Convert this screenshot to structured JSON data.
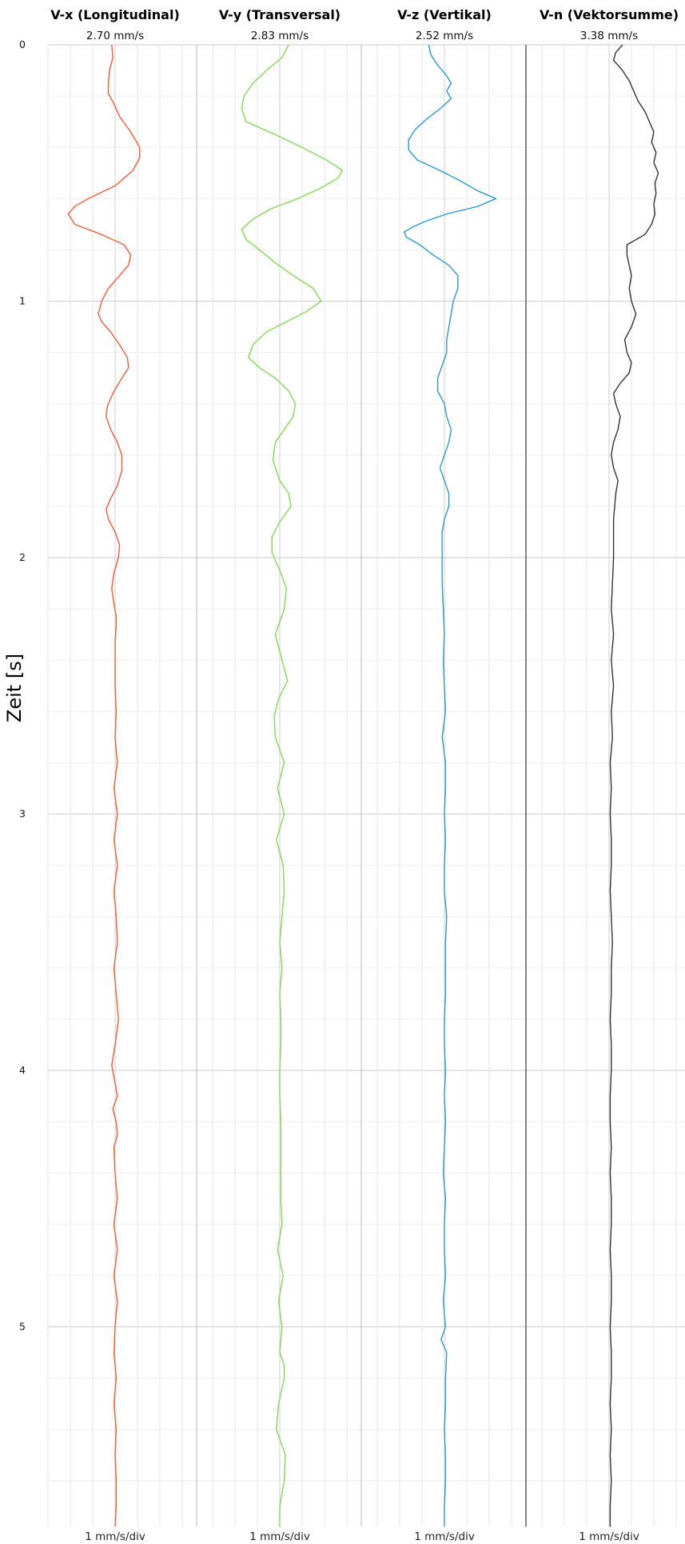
{
  "chart_data": {
    "type": "line",
    "ylabel": "Zeit [s]",
    "ylim": [
      0,
      5.78
    ],
    "yticks": [
      0,
      1,
      2,
      3,
      4,
      5
    ],
    "grid": true,
    "panels": [
      {
        "title": "V-x (Longitudinal)",
        "peak": "2.70 mm/s",
        "scale": "1 mm/s/div",
        "color": "#fa5c3a",
        "t": [
          0,
          0.05,
          0.1,
          0.15,
          0.19,
          0.23,
          0.28,
          0.34,
          0.4,
          0.44,
          0.49,
          0.55,
          0.6,
          0.63,
          0.66,
          0.7,
          0.74,
          0.78,
          0.82,
          0.86,
          0.9,
          0.95,
          1.0,
          1.05,
          1.08,
          1.12,
          1.17,
          1.22,
          1.26,
          1.3,
          1.36,
          1.41,
          1.45,
          1.5,
          1.55,
          1.6,
          1.66,
          1.72,
          1.77,
          1.81,
          1.85,
          1.9,
          1.95,
          2.0,
          2.06,
          2.12,
          2.18,
          2.23,
          2.27,
          2.32,
          2.36,
          2.5,
          2.6,
          2.7,
          2.8,
          2.9,
          3.0,
          3.1,
          3.2,
          3.3,
          3.4,
          3.5,
          3.6,
          3.7,
          3.8,
          3.9,
          3.98,
          4.05,
          4.1,
          4.15,
          4.2,
          4.25,
          4.3,
          4.4,
          4.5,
          4.6,
          4.7,
          4.8,
          4.9,
          5.0,
          5.1,
          5.2,
          5.3,
          5.4,
          5.5,
          5.6,
          5.7,
          5.78
        ],
        "v": [
          -0.15,
          -0.1,
          -0.25,
          -0.3,
          -0.3,
          -0.05,
          0.2,
          0.7,
          1.1,
          1.1,
          0.8,
          0.0,
          -1.2,
          -1.8,
          -2.1,
          -1.8,
          -0.6,
          0.4,
          0.7,
          0.6,
          0.2,
          -0.3,
          -0.6,
          -0.75,
          -0.6,
          -0.2,
          0.2,
          0.55,
          0.6,
          0.3,
          -0.1,
          -0.35,
          -0.4,
          -0.2,
          0.1,
          0.3,
          0.3,
          0.1,
          -0.2,
          -0.4,
          -0.3,
          0.0,
          0.2,
          0.15,
          -0.05,
          -0.15,
          -0.05,
          0.05,
          0.05,
          0.0,
          0.0,
          0.0,
          0.05,
          0.0,
          0.1,
          -0.05,
          0.1,
          -0.05,
          0.1,
          -0.05,
          0.05,
          0.1,
          -0.05,
          0.05,
          0.15,
          0.0,
          -0.15,
          0.0,
          0.1,
          -0.1,
          0.05,
          0.1,
          -0.05,
          0.0,
          0.1,
          -0.05,
          0.1,
          -0.05,
          0.1,
          0.0,
          -0.05,
          0.05,
          -0.05,
          0.05,
          0.0,
          0.05,
          0.05,
          0.0
        ]
      },
      {
        "title": "V-y (Transversal)",
        "peak": "2.83 mm/s",
        "scale": "1 mm/s/div",
        "color": "#87d55a",
        "t": [
          0,
          0.05,
          0.1,
          0.15,
          0.2,
          0.25,
          0.3,
          0.35,
          0.4,
          0.45,
          0.49,
          0.52,
          0.56,
          0.6,
          0.64,
          0.68,
          0.72,
          0.76,
          0.8,
          0.85,
          0.9,
          0.95,
          1.0,
          1.04,
          1.08,
          1.12,
          1.17,
          1.22,
          1.26,
          1.3,
          1.35,
          1.4,
          1.45,
          1.5,
          1.55,
          1.62,
          1.7,
          1.75,
          1.8,
          1.86,
          1.92,
          1.98,
          2.05,
          2.12,
          2.2,
          2.3,
          2.4,
          2.48,
          2.55,
          2.62,
          2.7,
          2.8,
          2.9,
          3.0,
          3.1,
          3.2,
          3.3,
          3.4,
          3.5,
          3.6,
          3.7,
          3.8,
          3.9,
          4.0,
          4.1,
          4.2,
          4.3,
          4.4,
          4.5,
          4.6,
          4.7,
          4.8,
          4.9,
          5.0,
          5.1,
          5.15,
          5.2,
          5.3,
          5.4,
          5.5,
          5.6,
          5.7,
          5.78
        ],
        "v": [
          0.4,
          0.1,
          -0.6,
          -1.2,
          -1.6,
          -1.7,
          -1.5,
          -0.2,
          1.0,
          2.1,
          2.8,
          2.6,
          1.8,
          0.8,
          -0.4,
          -1.2,
          -1.7,
          -1.5,
          -0.9,
          -0.2,
          0.6,
          1.5,
          1.85,
          1.2,
          0.3,
          -0.6,
          -1.2,
          -1.4,
          -0.9,
          -0.2,
          0.4,
          0.7,
          0.6,
          0.2,
          -0.2,
          -0.3,
          0.0,
          0.4,
          0.5,
          0.0,
          -0.35,
          -0.35,
          0.0,
          0.3,
          0.2,
          -0.2,
          0.1,
          0.35,
          -0.05,
          -0.25,
          -0.2,
          0.2,
          -0.1,
          0.2,
          -0.15,
          0.15,
          0.2,
          0.1,
          0.0,
          0.1,
          0.0,
          0.05,
          0.05,
          0.0,
          0.0,
          0.05,
          0.05,
          0.05,
          0.05,
          0.1,
          -0.1,
          0.15,
          -0.05,
          0.1,
          0.0,
          0.2,
          0.2,
          -0.05,
          -0.15,
          0.25,
          0.2,
          0.0,
          0.0
        ]
      },
      {
        "title": "V-z (Vertikal)",
        "peak": "2.52 mm/s",
        "scale": "1 mm/s/div",
        "color": "#2a9ad1",
        "t": [
          0,
          0.04,
          0.08,
          0.12,
          0.15,
          0.18,
          0.21,
          0.25,
          0.29,
          0.33,
          0.37,
          0.41,
          0.45,
          0.49,
          0.53,
          0.57,
          0.6,
          0.63,
          0.66,
          0.69,
          0.71,
          0.73,
          0.75,
          0.78,
          0.82,
          0.86,
          0.9,
          0.95,
          1.0,
          1.05,
          1.1,
          1.15,
          1.2,
          1.25,
          1.3,
          1.35,
          1.4,
          1.45,
          1.5,
          1.55,
          1.6,
          1.65,
          1.7,
          1.75,
          1.8,
          1.85,
          1.9,
          2.0,
          2.1,
          2.2,
          2.3,
          2.4,
          2.5,
          2.6,
          2.7,
          2.8,
          2.9,
          3.0,
          3.1,
          3.2,
          3.3,
          3.4,
          3.5,
          3.6,
          3.7,
          3.8,
          3.9,
          4.0,
          4.1,
          4.2,
          4.3,
          4.4,
          4.5,
          4.6,
          4.7,
          4.8,
          4.9,
          5.0,
          5.05,
          5.1,
          5.2,
          5.3,
          5.4,
          5.5,
          5.6,
          5.7,
          5.78
        ],
        "v": [
          -0.7,
          -0.6,
          -0.3,
          0.1,
          0.3,
          0.1,
          0.3,
          -0.2,
          -0.8,
          -1.3,
          -1.6,
          -1.6,
          -1.2,
          -0.2,
          0.7,
          1.5,
          2.3,
          1.5,
          0.1,
          -0.9,
          -1.4,
          -1.8,
          -1.7,
          -1.1,
          -0.5,
          0.2,
          0.6,
          0.6,
          0.4,
          0.3,
          0.2,
          0.1,
          0.1,
          -0.1,
          -0.3,
          -0.3,
          0.0,
          0.1,
          0.3,
          0.2,
          0.0,
          -0.2,
          0.0,
          0.2,
          0.2,
          0.0,
          -0.1,
          -0.1,
          -0.1,
          -0.05,
          0.0,
          -0.05,
          0.0,
          0.05,
          -0.1,
          0.05,
          0.05,
          0.0,
          0.05,
          0.0,
          0.0,
          0.1,
          0.05,
          0.05,
          0.05,
          0.0,
          0.0,
          0.05,
          0.0,
          0.05,
          0.0,
          -0.05,
          0.05,
          0.0,
          0.0,
          0.05,
          -0.05,
          0.05,
          -0.15,
          0.1,
          0.05,
          0.05,
          0.0,
          0.05,
          0.05,
          0.0,
          0.0
        ]
      },
      {
        "title": "V-n (Vektorsumme)",
        "peak": "3.38 mm/s",
        "scale": "1 mm/s/div",
        "color": "#333333",
        "t": [
          0,
          0.03,
          0.06,
          0.1,
          0.14,
          0.18,
          0.22,
          0.26,
          0.3,
          0.34,
          0.38,
          0.42,
          0.46,
          0.5,
          0.54,
          0.58,
          0.62,
          0.66,
          0.7,
          0.74,
          0.78,
          0.82,
          0.86,
          0.9,
          0.95,
          1.0,
          1.05,
          1.1,
          1.15,
          1.2,
          1.24,
          1.28,
          1.32,
          1.36,
          1.4,
          1.45,
          1.5,
          1.55,
          1.6,
          1.65,
          1.7,
          1.75,
          1.8,
          1.85,
          1.9,
          2.0,
          2.1,
          2.2,
          2.3,
          2.4,
          2.5,
          2.6,
          2.7,
          2.8,
          2.9,
          3.0,
          3.1,
          3.2,
          3.3,
          3.4,
          3.5,
          3.6,
          3.7,
          3.8,
          3.9,
          4.0,
          4.1,
          4.2,
          4.3,
          4.4,
          4.5,
          4.6,
          4.7,
          4.8,
          4.9,
          5.0,
          5.1,
          5.2,
          5.3,
          5.4,
          5.5,
          5.6,
          5.7,
          5.78
        ],
        "v": [
          0.6,
          0.3,
          0.2,
          0.6,
          0.9,
          1.1,
          1.3,
          1.6,
          1.8,
          2.0,
          1.9,
          2.1,
          2.0,
          2.2,
          2.05,
          2.1,
          2.0,
          2.05,
          1.9,
          1.6,
          0.8,
          0.8,
          0.9,
          1.0,
          0.9,
          1.0,
          1.2,
          1.0,
          0.7,
          0.8,
          1.0,
          0.9,
          0.5,
          0.2,
          0.3,
          0.5,
          0.4,
          0.2,
          0.1,
          0.2,
          0.4,
          0.3,
          0.25,
          0.2,
          0.2,
          0.2,
          0.15,
          0.1,
          0.2,
          0.1,
          0.2,
          0.1,
          0.15,
          0.05,
          0.1,
          0.05,
          0.1,
          0.1,
          0.05,
          0.1,
          0.15,
          0.1,
          0.1,
          0.05,
          0.1,
          0.1,
          0.05,
          0.05,
          0.1,
          0.05,
          0.1,
          0.1,
          0.05,
          0.1,
          0.1,
          0.05,
          0.1,
          0.1,
          0.05,
          0.1,
          0.05,
          0.1,
          0.05,
          0.05
        ]
      }
    ]
  }
}
